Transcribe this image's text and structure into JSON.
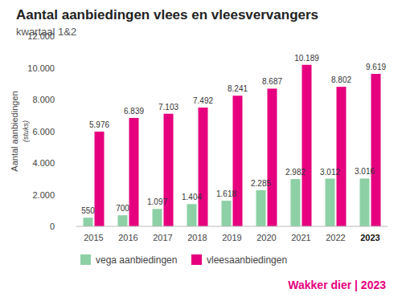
{
  "chart_data": {
    "type": "bar",
    "title": "Aantal aanbiedingen vlees en vleesvervangers",
    "subtitle": "kwartaal 1&2",
    "ylabel": "Aantal aanbiedingen",
    "ylabel_unit": "(stuks)",
    "source": "Wakker dier | 2023",
    "categories": [
      "2015",
      "2016",
      "2017",
      "2018",
      "2019",
      "2020",
      "2021",
      "2022",
      "2023"
    ],
    "series": [
      {
        "name": "vega aanbiedingen",
        "color": "#8dd0a6",
        "values": [
          550,
          700,
          1097,
          1404,
          1618,
          2285,
          2982,
          3012,
          3016
        ],
        "value_labels": [
          "550",
          "700",
          "1.097",
          "1.404",
          "1.618",
          "2.285",
          "2.982",
          "3.012",
          "3.016"
        ]
      },
      {
        "name": "vleesaanbiedingen",
        "color": "#e6007e",
        "values": [
          5976,
          6839,
          7103,
          7492,
          8241,
          8687,
          10189,
          8802,
          9619
        ],
        "value_labels": [
          "5.976",
          "6.839",
          "7.103",
          "7.492",
          "8.241",
          "8.687",
          "10.189",
          "8.802",
          "9.619"
        ]
      }
    ],
    "ylim": [
      0,
      12000
    ],
    "yticks": [
      0,
      {
        "value": 2000,
        "label": "2.000"
      },
      {
        "value": 4000,
        "label": "4.000"
      },
      {
        "value": 6000,
        "label": "6.000"
      },
      {
        "value": 8000,
        "label": "8.000"
      },
      {
        "value": 10000,
        "label": "10.000"
      },
      {
        "value": 12000,
        "label": "12.000"
      }
    ],
    "grid": false,
    "data_labels": true,
    "legend": "bottom"
  }
}
